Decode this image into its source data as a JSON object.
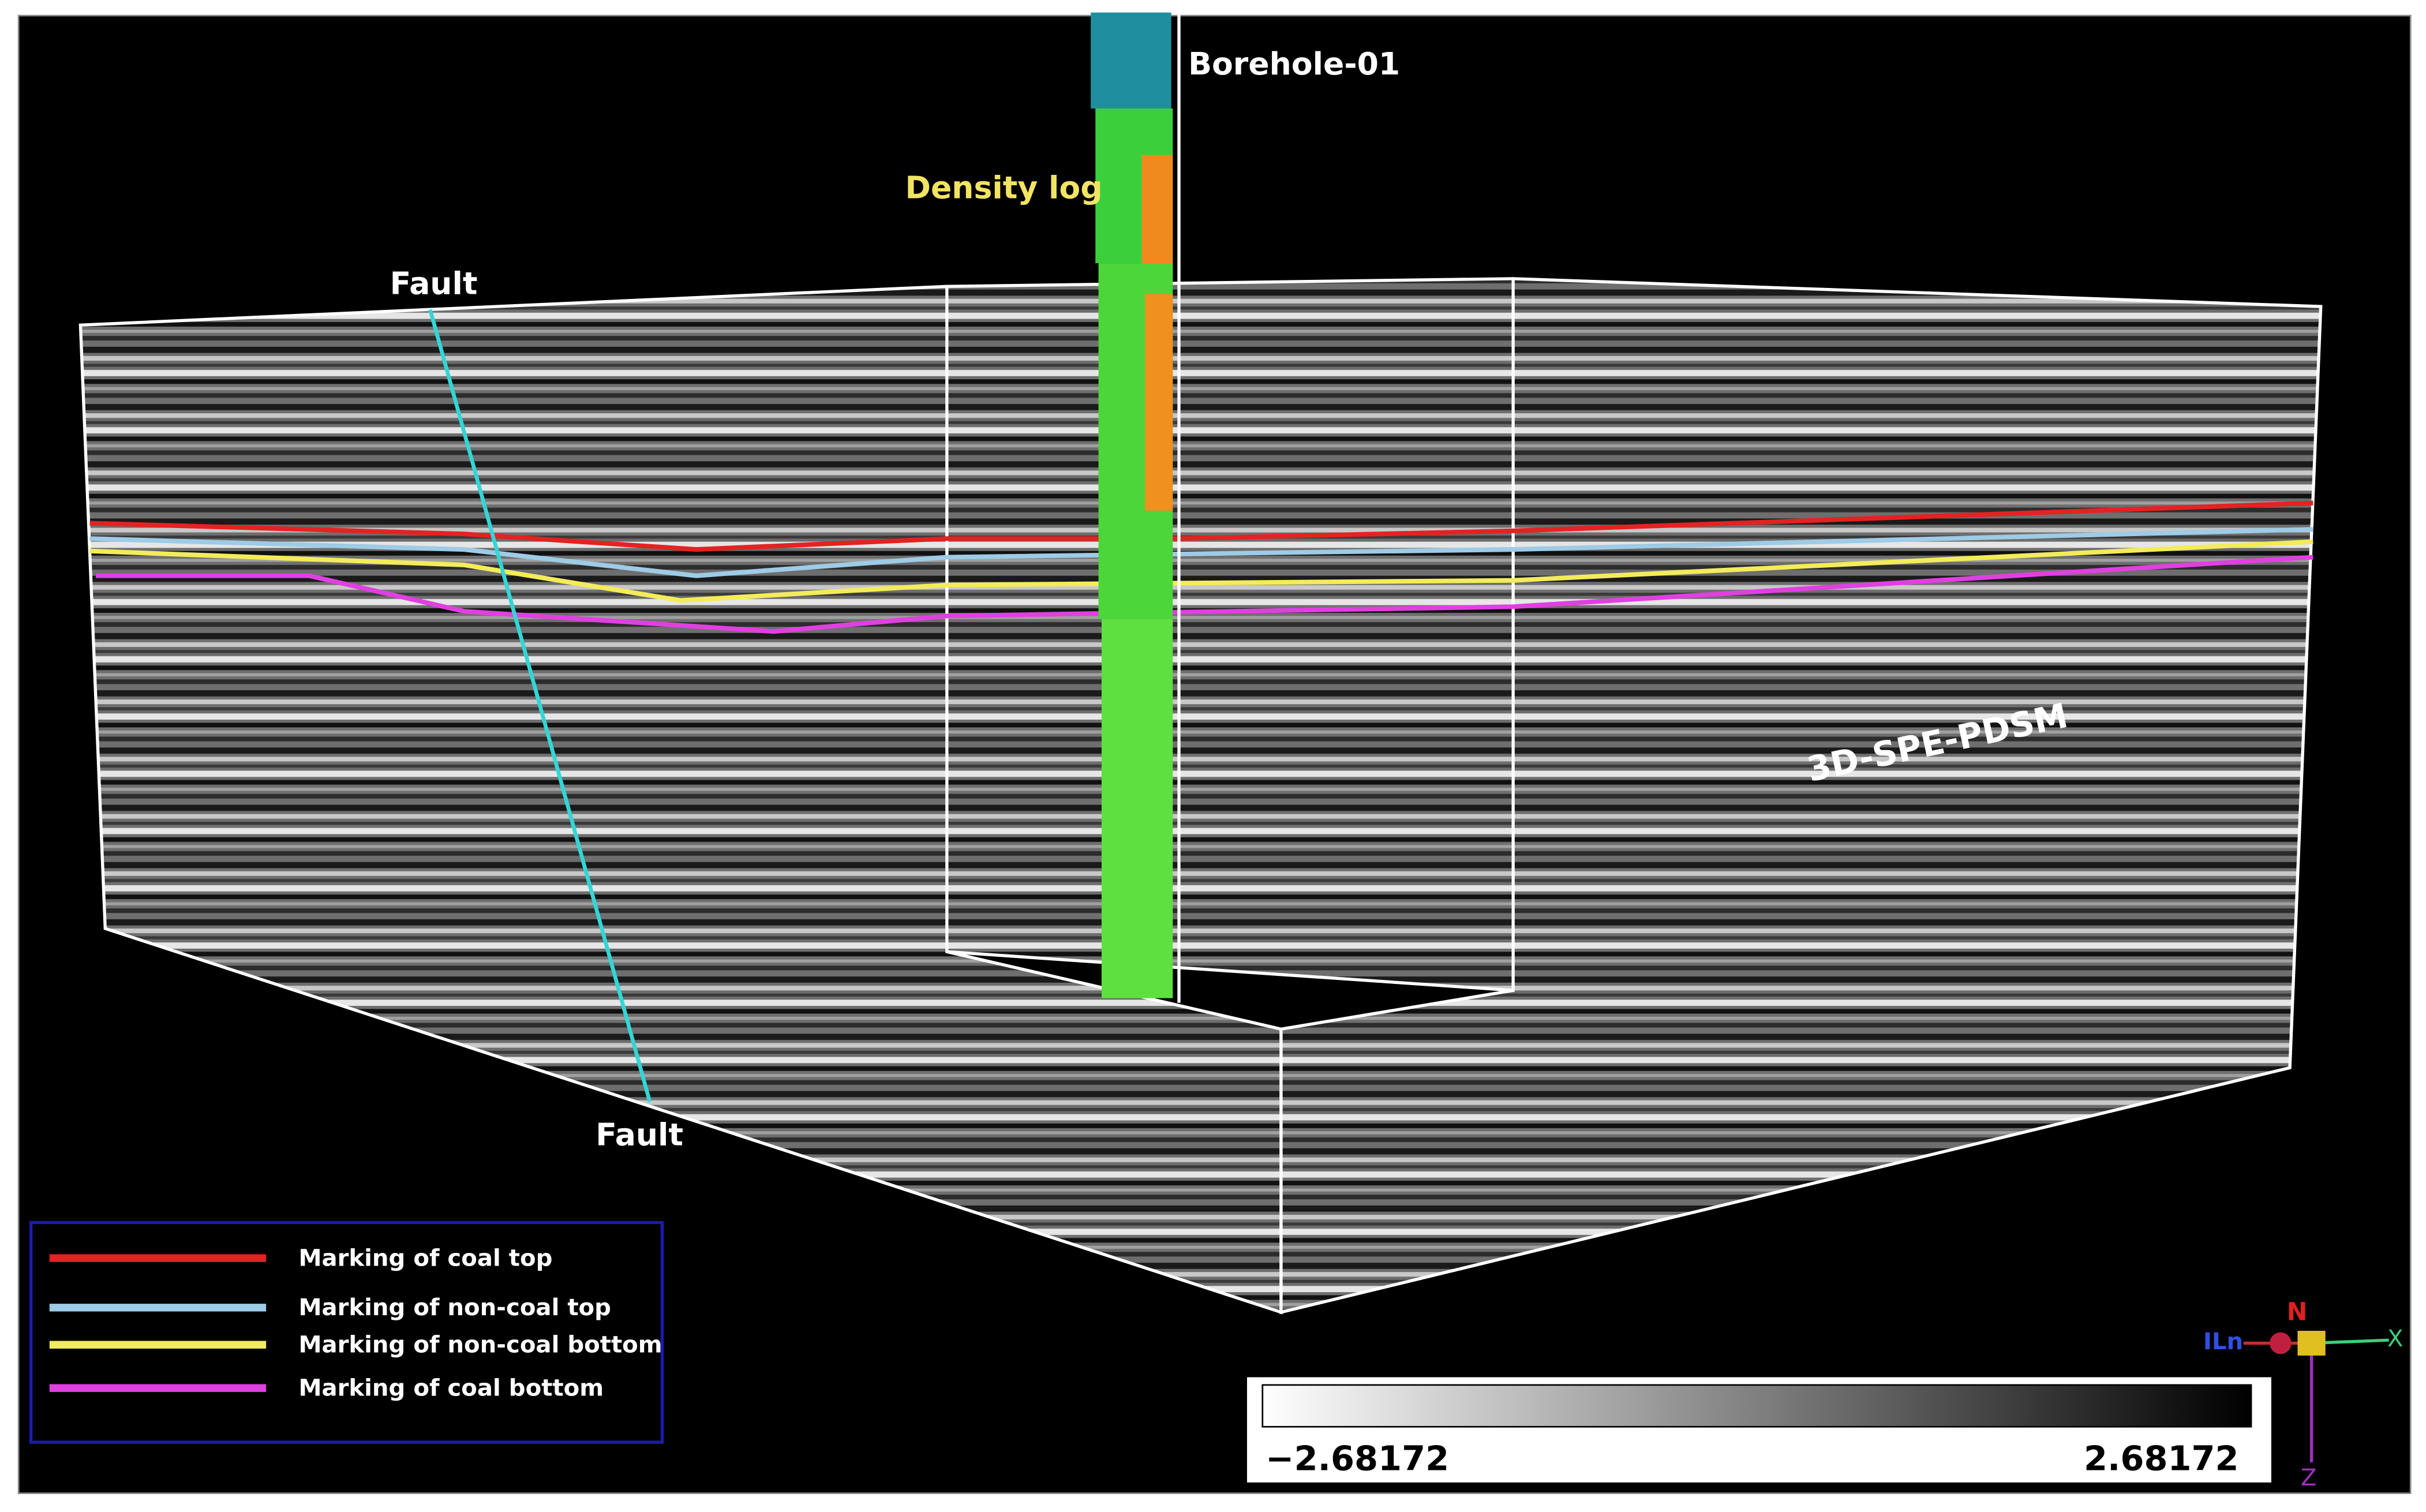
{
  "labels": {
    "borehole": "Borehole-01",
    "density_log": "Density log",
    "fault_top": "Fault",
    "fault_bottom": "Fault",
    "volume": "3D-SPE-PDSM"
  },
  "legend": {
    "items": [
      {
        "label": "Marking of coal top",
        "color": "#e42222"
      },
      {
        "label": "Marking of non-coal top",
        "color": "#9ecbe6"
      },
      {
        "label": "Marking of non-coal bottom",
        "color": "#f3ec5a"
      },
      {
        "label": "Marking of coal bottom",
        "color": "#e040e0"
      }
    ]
  },
  "colorbar": {
    "min_label": "−2.68172",
    "max_label": "2.68172"
  },
  "compass": {
    "north": "N",
    "inline": "ILn",
    "x": "X",
    "z": "Z"
  }
}
